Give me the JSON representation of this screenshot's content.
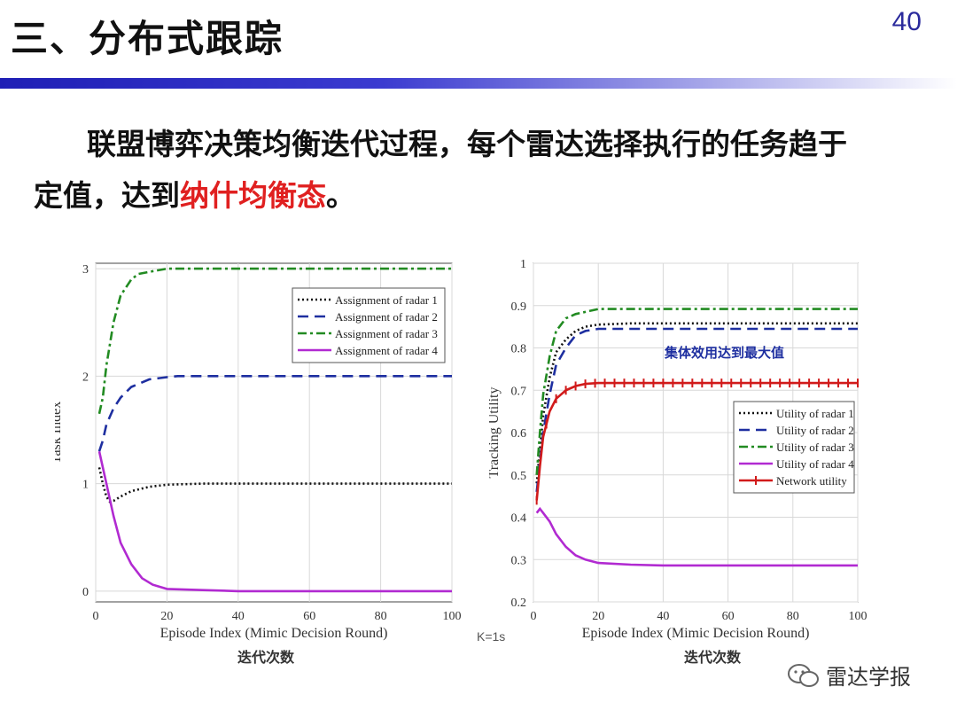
{
  "slide": {
    "title": "三、分布式跟踪",
    "page_number": "40",
    "body_line1": "联盟博弈决策均衡迭代过程，每个雷达选择执行的任务趋于",
    "body_line2_prefix": "定值，达到",
    "body_line2_highlight": "纳什均衡态",
    "body_line2_suffix": "。",
    "k_label": "K=1s",
    "watermark": "雷达学报",
    "colors": {
      "title_bar": "#1f1fb5",
      "highlight": "#e02020"
    }
  },
  "chart_data": [
    {
      "type": "line",
      "xlabel": "Episode Index (Mimic Decision Round)",
      "ylabel": "Task Index",
      "caption": "迭代次数",
      "xlim": [
        0,
        100
      ],
      "ylim": [
        -0.1,
        3.05
      ],
      "xticks": [
        "0",
        "20",
        "40",
        "60",
        "80",
        "100"
      ],
      "yticks": [
        "0",
        "1",
        "2",
        "3"
      ],
      "grid": true,
      "legend_position": "top-right",
      "series": [
        {
          "name": "Assignment of radar 1",
          "color": "#111111",
          "dash": "2,3",
          "points": [
            [
              1,
              1.15
            ],
            [
              2,
              1.0
            ],
            [
              3,
              0.88
            ],
            [
              4,
              0.83
            ],
            [
              5,
              0.84
            ],
            [
              7,
              0.88
            ],
            [
              10,
              0.93
            ],
            [
              15,
              0.97
            ],
            [
              20,
              0.99
            ],
            [
              30,
              1.0
            ],
            [
              100,
              1.0
            ]
          ]
        },
        {
          "name": "Assignment of radar 2",
          "color": "#1e2fa0",
          "dash": "12,7",
          "points": [
            [
              1,
              1.3
            ],
            [
              2,
              1.4
            ],
            [
              3,
              1.55
            ],
            [
              5,
              1.7
            ],
            [
              7,
              1.8
            ],
            [
              10,
              1.9
            ],
            [
              15,
              1.97
            ],
            [
              20,
              1.99
            ],
            [
              23,
              2.0
            ],
            [
              100,
              2.0
            ]
          ]
        },
        {
          "name": "Assignment of radar 3",
          "color": "#228b22",
          "dash": "10,4,3,4",
          "points": [
            [
              1,
              1.65
            ],
            [
              2,
              1.8
            ],
            [
              3,
              2.1
            ],
            [
              5,
              2.5
            ],
            [
              7,
              2.75
            ],
            [
              10,
              2.9
            ],
            [
              12,
              2.95
            ],
            [
              15,
              2.97
            ],
            [
              20,
              3.0
            ],
            [
              100,
              3.0
            ]
          ]
        },
        {
          "name": "Assignment of radar 4",
          "color": "#b12ad1",
          "dash": "",
          "points": [
            [
              1,
              1.3
            ],
            [
              3,
              1.0
            ],
            [
              5,
              0.7
            ],
            [
              7,
              0.45
            ],
            [
              10,
              0.25
            ],
            [
              13,
              0.12
            ],
            [
              16,
              0.06
            ],
            [
              20,
              0.02
            ],
            [
              30,
              0.01
            ],
            [
              40,
              0.0
            ],
            [
              100,
              0.0
            ]
          ]
        }
      ]
    },
    {
      "type": "line",
      "xlabel": "Episode Index (Mimic Decision Round)",
      "ylabel": "Tracking Utility",
      "caption": "迭代次数",
      "annotation": "集体效用达到最大值",
      "xlim": [
        0,
        100
      ],
      "ylim": [
        0.2,
        1.0
      ],
      "xticks": [
        "0",
        "20",
        "40",
        "60",
        "80",
        "100"
      ],
      "yticks": [
        "0.2",
        "0.3",
        "0.4",
        "0.5",
        "0.6",
        "0.7",
        "0.8",
        "0.9",
        "1"
      ],
      "grid": true,
      "legend_position": "center-right",
      "series": [
        {
          "name": "Utility of radar 1",
          "color": "#111111",
          "dash": "2,3",
          "marker": "none",
          "points": [
            [
              1,
              0.48
            ],
            [
              2,
              0.56
            ],
            [
              3,
              0.64
            ],
            [
              5,
              0.73
            ],
            [
              7,
              0.79
            ],
            [
              10,
              0.82
            ],
            [
              13,
              0.84
            ],
            [
              16,
              0.85
            ],
            [
              20,
              0.855
            ],
            [
              30,
              0.858
            ],
            [
              100,
              0.858
            ]
          ]
        },
        {
          "name": "Utility of radar 2",
          "color": "#1e2fa0",
          "dash": "12,7",
          "marker": "none",
          "points": [
            [
              1,
              0.46
            ],
            [
              2,
              0.53
            ],
            [
              3,
              0.6
            ],
            [
              5,
              0.69
            ],
            [
              7,
              0.76
            ],
            [
              10,
              0.8
            ],
            [
              13,
              0.83
            ],
            [
              16,
              0.84
            ],
            [
              20,
              0.845
            ],
            [
              100,
              0.845
            ]
          ]
        },
        {
          "name": "Utility of radar 3",
          "color": "#228b22",
          "dash": "10,4,3,4",
          "marker": "none",
          "points": [
            [
              1,
              0.5
            ],
            [
              2,
              0.6
            ],
            [
              3,
              0.69
            ],
            [
              5,
              0.78
            ],
            [
              7,
              0.84
            ],
            [
              10,
              0.87
            ],
            [
              13,
              0.88
            ],
            [
              16,
              0.885
            ],
            [
              20,
              0.892
            ],
            [
              100,
              0.892
            ]
          ]
        },
        {
          "name": "Utility of radar 4",
          "color": "#b12ad1",
          "dash": "",
          "marker": "none",
          "points": [
            [
              1,
              0.41
            ],
            [
              2,
              0.42
            ],
            [
              3,
              0.41
            ],
            [
              5,
              0.39
            ],
            [
              7,
              0.36
            ],
            [
              10,
              0.33
            ],
            [
              13,
              0.31
            ],
            [
              16,
              0.3
            ],
            [
              20,
              0.292
            ],
            [
              30,
              0.288
            ],
            [
              40,
              0.286
            ],
            [
              100,
              0.286
            ]
          ]
        },
        {
          "name": "Network utility",
          "color": "#d11a1a",
          "dash": "",
          "marker": "tick",
          "points": [
            [
              1,
              0.44
            ],
            [
              2,
              0.52
            ],
            [
              3,
              0.59
            ],
            [
              5,
              0.65
            ],
            [
              7,
              0.68
            ],
            [
              10,
              0.7
            ],
            [
              13,
              0.71
            ],
            [
              16,
              0.715
            ],
            [
              20,
              0.717
            ],
            [
              100,
              0.717
            ]
          ]
        }
      ]
    }
  ]
}
